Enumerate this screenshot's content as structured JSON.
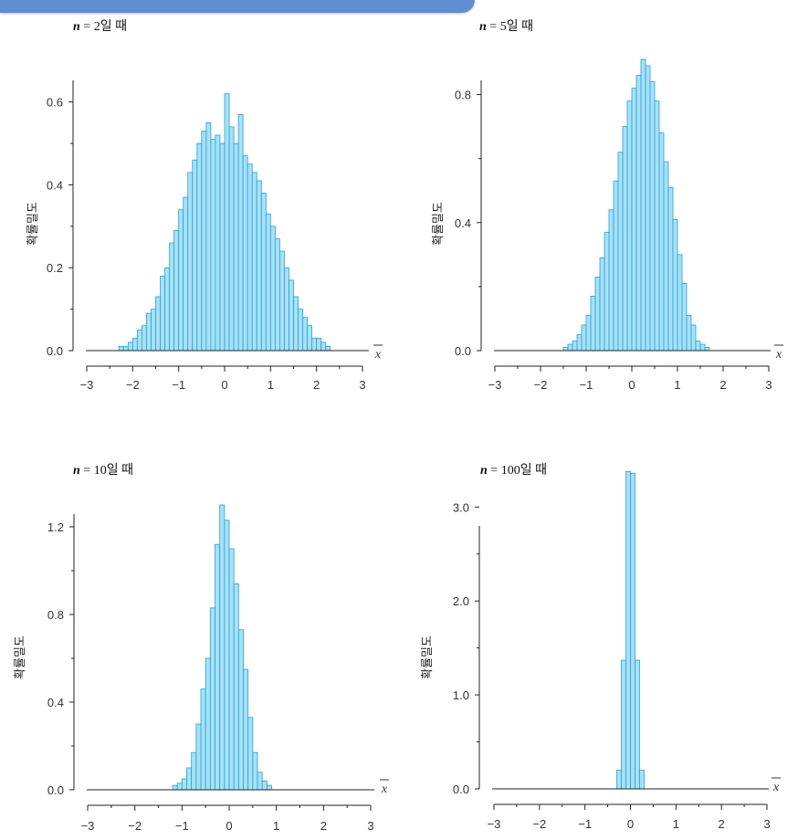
{
  "chart_data": [
    {
      "type": "bar",
      "title_n": "n",
      "title_rest": " = 2일 때",
      "ylabel": "확률밀도",
      "xlabel": "x",
      "xlim": [
        -3,
        3
      ],
      "ylim": [
        0,
        0.65
      ],
      "bin_width": 0.1,
      "xticks": [
        -3,
        -2,
        -1,
        0,
        1,
        2,
        3
      ],
      "yticks": [
        0.0,
        0.2,
        0.4,
        0.6
      ],
      "ytick_labels": [
        "0.0",
        "0.2",
        "0.4",
        "0.6"
      ],
      "bin_start": -2.3,
      "values": [
        0.01,
        0.01,
        0.02,
        0.03,
        0.05,
        0.06,
        0.09,
        0.1,
        0.13,
        0.18,
        0.2,
        0.26,
        0.29,
        0.34,
        0.37,
        0.43,
        0.46,
        0.5,
        0.53,
        0.55,
        0.51,
        0.52,
        0.5,
        0.62,
        0.54,
        0.5,
        0.57,
        0.47,
        0.45,
        0.43,
        0.41,
        0.38,
        0.33,
        0.3,
        0.27,
        0.24,
        0.2,
        0.17,
        0.13,
        0.1,
        0.08,
        0.06,
        0.03,
        0.03,
        0.02,
        0.01
      ]
    },
    {
      "type": "bar",
      "title_n": "n",
      "title_rest": " = 5일 때",
      "ylabel": "확률밀도",
      "xlabel": "x",
      "xlim": [
        -3,
        3
      ],
      "ylim": [
        0,
        0.93
      ],
      "bin_width": 0.1,
      "xticks": [
        -3,
        -2,
        -1,
        0,
        1,
        2,
        3
      ],
      "yticks": [
        0.0,
        0.4,
        0.8
      ],
      "ytick_labels": [
        "0.0",
        "0.4",
        "0.8"
      ],
      "bin_start": -1.5,
      "values": [
        0.01,
        0.02,
        0.03,
        0.05,
        0.08,
        0.11,
        0.17,
        0.23,
        0.29,
        0.37,
        0.44,
        0.53,
        0.62,
        0.7,
        0.78,
        0.82,
        0.86,
        0.91,
        0.89,
        0.84,
        0.78,
        0.68,
        0.59,
        0.51,
        0.41,
        0.3,
        0.21,
        0.11,
        0.08,
        0.03,
        0.02,
        0.01
      ]
    },
    {
      "type": "bar",
      "title_n": "n",
      "title_rest": " = 10일 때",
      "ylabel": "확률밀도",
      "xlabel": "x",
      "xlim": [
        -3,
        3
      ],
      "ylim": [
        0,
        1.3
      ],
      "bin_width": 0.1,
      "xticks": [
        -3,
        -2,
        -1,
        0,
        1,
        2,
        3
      ],
      "yticks": [
        0.0,
        0.4,
        0.8,
        1.2
      ],
      "ytick_labels": [
        "0.0",
        "0.4",
        "0.8",
        "1.2"
      ],
      "bin_start": -1.2,
      "values": [
        0.02,
        0.03,
        0.05,
        0.1,
        0.17,
        0.3,
        0.46,
        0.6,
        0.83,
        1.12,
        1.3,
        1.23,
        1.1,
        0.94,
        0.73,
        0.55,
        0.33,
        0.17,
        0.08,
        0.04,
        0.02
      ]
    },
    {
      "type": "bar",
      "title_n": "n",
      "title_rest": " = 100일 때",
      "ylabel": "확률밀도",
      "xlabel": "x",
      "xlim": [
        -3,
        3
      ],
      "ylim": [
        0,
        3.45
      ],
      "bin_width": 0.1,
      "xticks": [
        -3,
        -2,
        -1,
        0,
        1,
        2,
        3
      ],
      "yticks": [
        0.0,
        1.0,
        2.0,
        3.0
      ],
      "ytick_labels": [
        "0.0",
        "1.0",
        "2.0",
        "3.0"
      ],
      "bin_start": -0.3,
      "values": [
        0.2,
        1.37,
        3.38,
        3.36,
        1.37,
        0.2
      ]
    }
  ]
}
